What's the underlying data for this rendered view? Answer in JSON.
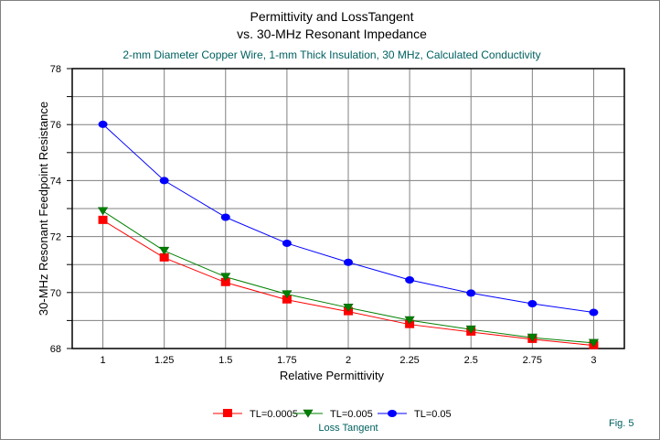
{
  "chart_data": {
    "type": "line",
    "title_line1": "Permittivity and LossTangent",
    "title_line2": "vs. 30-MHz Resonant Impedance",
    "subtitle": "2-mm Diameter Copper Wire, 1-mm Thick Insulation, 30 MHz, Calculated Conductivity",
    "xlabel": "Relative Permittivity",
    "ylabel": "30-MHz Resonant Feedpoint Resistance",
    "x": [
      1,
      1.25,
      1.5,
      1.75,
      2,
      2.25,
      2.5,
      2.75,
      3
    ],
    "x_tick_labels": [
      "1",
      "1.25",
      "1.5",
      "1.75",
      "2",
      "2.25",
      "2.5",
      "2.75",
      "3"
    ],
    "y_tick_labels": [
      "68",
      "70",
      "72",
      "74",
      "76",
      "78"
    ],
    "xlim": [
      0.875,
      3.125
    ],
    "ylim": [
      68,
      78
    ],
    "grid": true,
    "legend_title": "Loss Tangent",
    "legend_position": "bottom",
    "footnote": "Fig. 5",
    "series": [
      {
        "name": "TL=0.0005",
        "color": "#ff0000",
        "marker": "square",
        "values": [
          72.58,
          71.24,
          70.36,
          69.74,
          69.32,
          68.86,
          68.59,
          68.33,
          68.11
        ]
      },
      {
        "name": "TL=0.005",
        "color": "#008000",
        "marker": "triangle-down",
        "values": [
          72.91,
          71.49,
          70.56,
          69.94,
          69.46,
          69.01,
          68.68,
          68.39,
          68.2
        ]
      },
      {
        "name": "TL=0.05",
        "color": "#0000ff",
        "marker": "circle",
        "values": [
          76.01,
          74.0,
          72.69,
          71.76,
          71.08,
          70.45,
          69.98,
          69.6,
          69.29
        ]
      }
    ]
  }
}
